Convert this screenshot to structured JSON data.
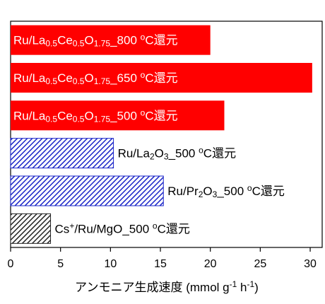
{
  "chart_data": {
    "type": "bar",
    "orientation": "horizontal",
    "x_label": "アンモニア生成速度 (mmol g-1 h-1)",
    "categories": [
      "Ru/La0.5Ce0.5O1.75_800 oC還元",
      "Ru/La0.5Ce0.5O1.75_650 oC還元",
      "Ru/La0.5Ce0.5O1.75_500 oC還元",
      "Ru/La2O3_500 oC還元",
      "Ru/Pr2O3_500 oC還元",
      "Cs+/Ru/MgO_500 oC還元"
    ],
    "values": [
      20.0,
      30.2,
      21.4,
      10.3,
      15.3,
      4.0
    ],
    "colors": [
      "#ff0000",
      "#ff0000",
      "#ff0000",
      "#1a24c8",
      "#1a24c8",
      "#222222"
    ],
    "hatch": [
      false,
      false,
      false,
      true,
      true,
      true
    ],
    "xlim": [
      0,
      31.2
    ],
    "xticks": [
      0,
      5,
      10,
      15,
      20,
      25,
      30
    ]
  }
}
